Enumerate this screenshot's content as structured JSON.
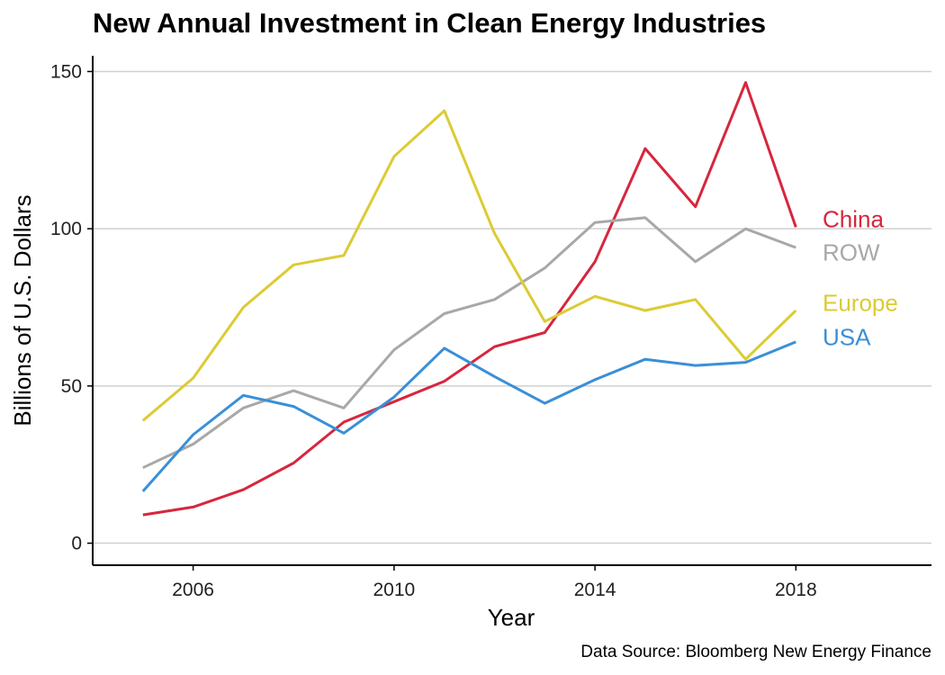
{
  "chart_data": {
    "type": "line",
    "title": "New Annual Investment in Clean Energy Industries",
    "xlabel": "Year",
    "ylabel": "Billions of U.S. Dollars",
    "caption": "Data Source: Bloomberg New Energy Finance",
    "xlim": [
      2004,
      2020.7
    ],
    "ylim": [
      -7,
      155
    ],
    "x_ticks": [
      2006,
      2010,
      2014,
      2018
    ],
    "y_ticks": [
      0,
      50,
      100,
      150
    ],
    "grid": "horizontal",
    "legend": "direct-labels-right",
    "x": [
      2005,
      2006,
      2007,
      2008,
      2009,
      2010,
      2011,
      2012,
      2013,
      2014,
      2015,
      2016,
      2017,
      2018
    ],
    "series": [
      {
        "name": "China",
        "color": "#d7263d",
        "values": [
          9,
          11.5,
          17,
          25.5,
          38.5,
          45,
          51.5,
          62.5,
          67,
          89.5,
          125.5,
          107,
          146.5,
          100.5
        ]
      },
      {
        "name": "ROW",
        "color": "#a8a8a8",
        "values": [
          24,
          31.5,
          43,
          48.5,
          43,
          61.5,
          73,
          77.5,
          87.5,
          102,
          103.5,
          89.5,
          100,
          94
        ]
      },
      {
        "name": "Europe",
        "color": "#dccb34",
        "values": [
          39,
          52.5,
          75,
          88.5,
          91.5,
          123,
          137.5,
          98.5,
          70.5,
          78.5,
          74,
          77.5,
          58.5,
          74
        ]
      },
      {
        "name": "USA",
        "color": "#3a8fd8",
        "values": [
          16.5,
          34.5,
          47,
          43.5,
          35,
          46.5,
          62,
          53,
          44.5,
          52,
          58.5,
          56.5,
          57.5,
          64
        ]
      }
    ],
    "label_values": {
      "China": 103,
      "ROW": 92.5,
      "Europe": 76.5,
      "USA": 65.5
    }
  }
}
